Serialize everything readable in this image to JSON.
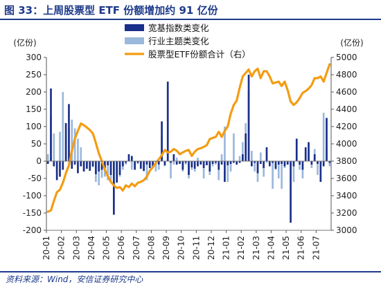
{
  "figure": {
    "title": "图 33：上周股票型 ETF 份额增加约 91 亿份",
    "source": "资料来源：Wind，安信证券研究中心"
  },
  "colors": {
    "broad_bar": "#1a2f8a",
    "industry_bar": "#9bb8dc",
    "total_line": "#f39c12",
    "accent": "#1d3a8a"
  },
  "chart_data": {
    "type": "bar",
    "left_unit": "(亿份)",
    "right_unit": "(亿份)",
    "left_ylim": [
      -200,
      300
    ],
    "left_ticks": [
      -200,
      -150,
      -100,
      -50,
      0,
      50,
      100,
      150,
      200,
      250,
      300
    ],
    "right_ylim": [
      3000,
      5000
    ],
    "right_ticks": [
      3000,
      3200,
      3400,
      3600,
      3800,
      4000,
      4200,
      4400,
      4600,
      4800,
      5000
    ],
    "x_start": "2020-01",
    "x_end": "2021-08",
    "x_ticks": [
      "20-01",
      "20-02",
      "20-03",
      "20-04",
      "20-05",
      "20-06",
      "20-07",
      "20-08",
      "20-09",
      "20-10",
      "20-11",
      "20-12",
      "21-01",
      "21-02",
      "21-03",
      "21-04",
      "21-05",
      "21-06",
      "21-07"
    ],
    "legend_position": "top-center",
    "grid": false,
    "series": [
      {
        "name": "宽基指数类变化",
        "kind": "bar",
        "axis": "left",
        "values": [
          -8,
          210,
          -15,
          -55,
          -45,
          -25,
          110,
          165,
          -22,
          -10,
          -35,
          -15,
          -30,
          -22,
          -28,
          -15,
          -38,
          -30,
          -25,
          -20,
          -12,
          -40,
          -155,
          -62,
          -40,
          -15,
          -5,
          20,
          15,
          -25,
          -5,
          -22,
          -28,
          -10,
          -20,
          -18,
          -8,
          -10,
          115,
          -12,
          230,
          -5,
          20,
          -10,
          -8,
          -25,
          -5,
          -40,
          -18,
          -22,
          -15,
          -10,
          -20,
          -12,
          -30,
          -8,
          -5,
          -25,
          -10,
          -60,
          -12,
          -8,
          -5,
          -10,
          -5,
          20,
          80,
          250,
          -15,
          -5,
          -35,
          -8,
          -20,
          40,
          -15,
          -5,
          -22,
          -10,
          -8,
          -15,
          -10,
          -178,
          -15,
          65,
          -10,
          -25,
          40,
          55,
          -10,
          20,
          -8,
          -60,
          -15,
          125,
          -5
        ]
      },
      {
        "name": "行业主题类变化",
        "kind": "bar",
        "axis": "left",
        "values": [
          20,
          130,
          80,
          -35,
          85,
          200,
          70,
          95,
          120,
          95,
          65,
          40,
          -25,
          -10,
          -12,
          -18,
          -60,
          -70,
          -48,
          -45,
          -55,
          -60,
          -65,
          -35,
          -45,
          -25,
          -10,
          5,
          -25,
          -15,
          -8,
          -20,
          -30,
          -55,
          -10,
          -15,
          -30,
          -25,
          75,
          -15,
          35,
          -50,
          -10,
          10,
          -5,
          -30,
          -10,
          -50,
          -25,
          -30,
          10,
          -5,
          -50,
          -10,
          -40,
          -15,
          -10,
          -55,
          20,
          100,
          -60,
          -30,
          80,
          -10,
          15,
          55,
          110,
          205,
          30,
          -30,
          -60,
          25,
          -45,
          -5,
          -10,
          -80,
          -25,
          -50,
          -80,
          -20,
          -10,
          -15,
          -60,
          10,
          -25,
          -50,
          30,
          30,
          -20,
          35,
          -40,
          -10,
          140,
          35,
          -15
        ]
      },
      {
        "name": "股票型ETF份额合计（右）",
        "kind": "line",
        "axis": "right",
        "values": [
          3215,
          3230,
          3340,
          3440,
          3470,
          3550,
          3660,
          3750,
          3920,
          4060,
          4150,
          4235,
          4215,
          4190,
          4160,
          4120,
          4010,
          3890,
          3800,
          3700,
          3625,
          3560,
          3520,
          3490,
          3500,
          3460,
          3520,
          3500,
          3540,
          3510,
          3550,
          3560,
          3580,
          3620,
          3690,
          3730,
          3780,
          3820,
          3870,
          3930,
          3900,
          3910,
          3940,
          3920,
          3880,
          3900,
          3920,
          3930,
          3860,
          3910,
          3940,
          3950,
          3965,
          3985,
          4055,
          4070,
          4080,
          4140,
          4080,
          4150,
          4200,
          4350,
          4450,
          4500,
          4650,
          4780,
          4820,
          4860,
          4780,
          4840,
          4870,
          4760,
          4840,
          4840,
          4780,
          4700,
          4710,
          4720,
          4670,
          4720,
          4620,
          4490,
          4450,
          4480,
          4530,
          4590,
          4610,
          4640,
          4680,
          4760,
          4760,
          4780,
          4720,
          4820,
          4920
        ]
      }
    ]
  }
}
